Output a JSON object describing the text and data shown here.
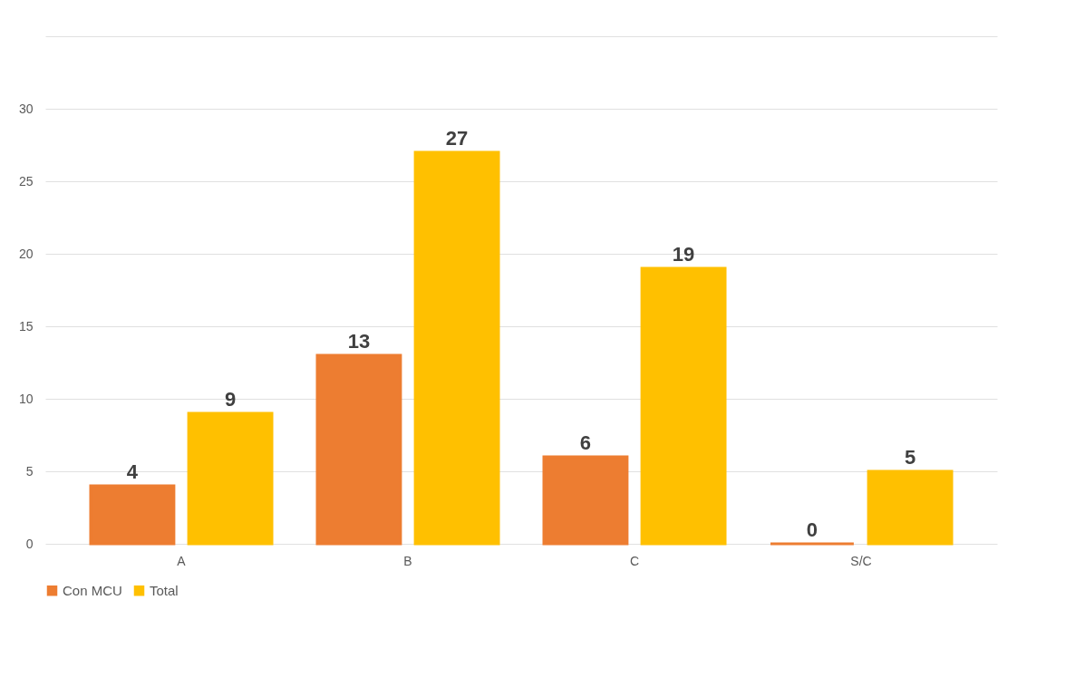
{
  "chart_data": {
    "type": "bar",
    "categories": [
      "A",
      "B",
      "C",
      "S/C"
    ],
    "series": [
      {
        "name": "Con MCU",
        "color": "#ed7d31",
        "values": [
          4,
          13,
          6,
          0
        ]
      },
      {
        "name": "Total",
        "color": "#ffc000",
        "values": [
          9,
          27,
          19,
          5
        ]
      }
    ],
    "ylim": [
      0,
      35
    ],
    "yticks": [
      0,
      5,
      10,
      15,
      20,
      25,
      30,
      {
        "value": 35,
        "label": null
      }
    ],
    "grid": "y",
    "data_labels": true,
    "legend": "bottom"
  }
}
